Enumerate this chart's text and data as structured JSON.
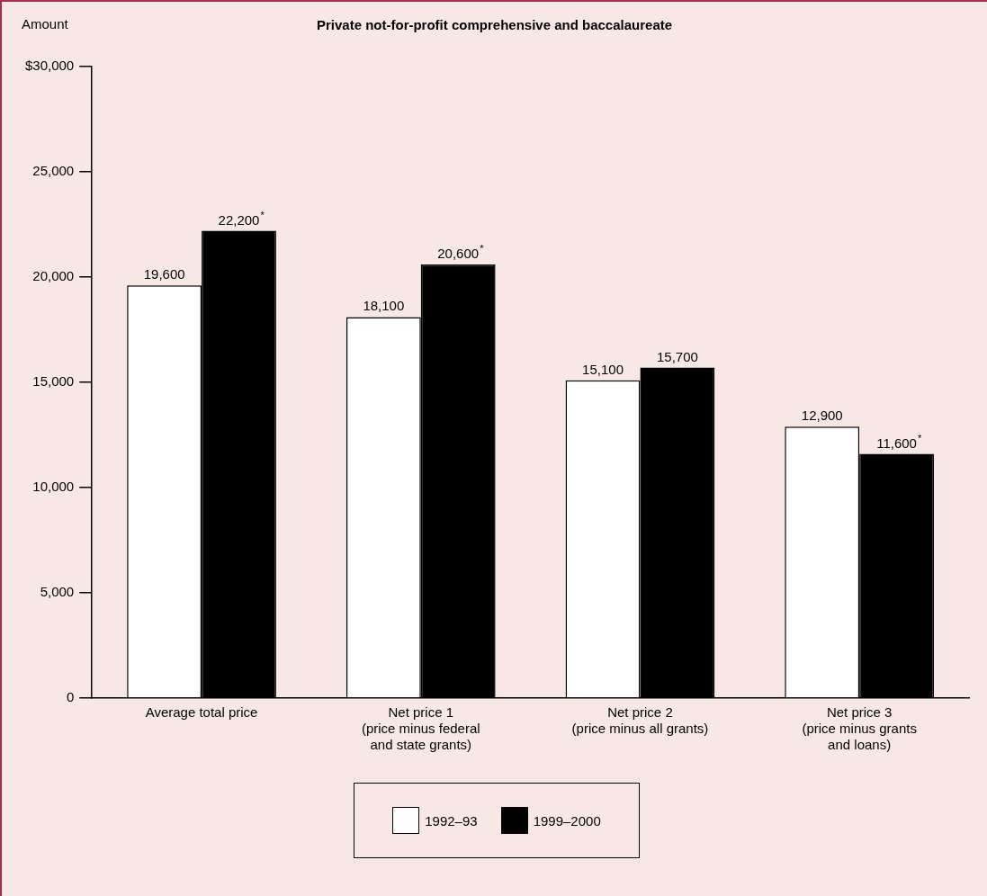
{
  "chart_data": {
    "type": "bar",
    "title": "Private not-for-profit comprehensive and baccalaureate",
    "ylabel": "Amount",
    "categories": [
      "Average total price",
      "Net price 1\n(price minus federal\nand state grants)",
      "Net price 2\n(price minus all grants)",
      "Net price 3\n(price minus grants\nand loans)"
    ],
    "series": [
      {
        "name": "1992–93",
        "color": "#ffffff",
        "values": [
          19600,
          18100,
          15100,
          12900
        ],
        "value_labels": [
          "19,600",
          "18,100",
          "15,100",
          "12,900"
        ]
      },
      {
        "name": "1999–2000",
        "color": "#000000",
        "values": [
          22200,
          20600,
          15700,
          11600
        ],
        "value_labels": [
          "22,200$^{*}$",
          "20,600$^{*}$",
          "15,700",
          "11,600$^{*}$"
        ]
      }
    ],
    "ylim": [
      0,
      30000
    ],
    "yticks": [
      {
        "value": 0,
        "label": "0"
      },
      {
        "value": 5000,
        "label": "5,000"
      },
      {
        "value": 10000,
        "label": "10,000"
      },
      {
        "value": 15000,
        "label": "15,000"
      },
      {
        "value": 20000,
        "label": "20,000"
      },
      {
        "value": 25000,
        "label": "25,000"
      },
      {
        "value": 30000,
        "label": "$30,000"
      }
    ],
    "grid": false,
    "legend": "bottom"
  }
}
